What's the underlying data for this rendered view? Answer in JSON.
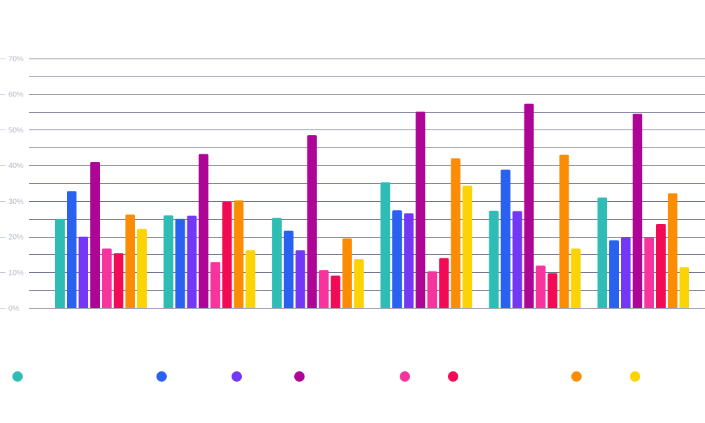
{
  "chart_data": {
    "type": "bar",
    "title": "",
    "xlabel": "",
    "ylabel": "",
    "ylim": [
      0,
      70
    ],
    "yticks": [
      0,
      10,
      20,
      30,
      40,
      50,
      60,
      70
    ],
    "ytick_labels": [
      "0%",
      "10%",
      "20%",
      "30%",
      "40%",
      "50%",
      "60%",
      "70%"
    ],
    "grid": true,
    "legend": "bottom",
    "categories": [
      "",
      "",
      "",
      "",
      "",
      ""
    ],
    "series": [
      {
        "color": "#2ebdb4",
        "values": [
          25,
          26,
          25.3,
          35.3,
          27.3,
          31
        ]
      },
      {
        "color": "#2962f0",
        "values": [
          32.8,
          25,
          21.7,
          27.4,
          38.8,
          19
        ]
      },
      {
        "color": "#7337f5",
        "values": [
          20,
          25.9,
          16.2,
          26.6,
          27.2,
          19.8
        ]
      },
      {
        "color": "#ad0596",
        "values": [
          41,
          43.2,
          48.5,
          55.1,
          57.3,
          54.5
        ]
      },
      {
        "color": "#f7349d",
        "values": [
          16.7,
          12.9,
          10.6,
          10.3,
          11.9,
          19.8
        ]
      },
      {
        "color": "#f20a55",
        "values": [
          15.4,
          29.8,
          9.1,
          14,
          9.8,
          23.6
        ]
      },
      {
        "color": "#fc8c03",
        "values": [
          26.2,
          30.2,
          19.5,
          42,
          43,
          32.2
        ]
      },
      {
        "color": "#fcd304",
        "values": [
          22.2,
          16.2,
          13.7,
          34.3,
          16.7,
          11.4
        ]
      }
    ]
  }
}
